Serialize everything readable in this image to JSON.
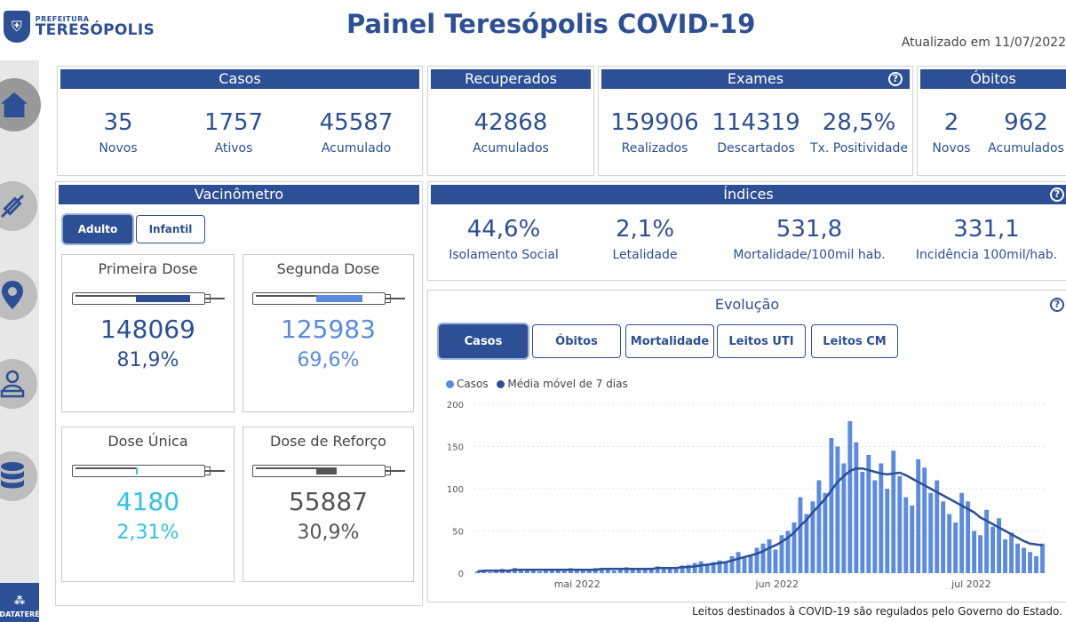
{
  "header": {
    "logo_top": "PREFEITURA",
    "logo_main": "TERESÓPOLIS",
    "title": "Painel Teresópolis COVID-19",
    "updated": "Atualizado em 11/07/2022"
  },
  "sidebar": {
    "brand": "DATATERÉ"
  },
  "casos": {
    "title": "Casos",
    "items": [
      {
        "value": "35",
        "label": "Novos"
      },
      {
        "value": "1757",
        "label": "Ativos"
      },
      {
        "value": "45587",
        "label": "Acumulado"
      }
    ]
  },
  "recuperados": {
    "title": "Recuperados",
    "value": "42868",
    "label": "Acumulados"
  },
  "exames": {
    "title": "Exames",
    "items": [
      {
        "value": "159906",
        "label": "Realizados"
      },
      {
        "value": "114319",
        "label": "Descartados"
      },
      {
        "value": "28,5%",
        "label": "Tx. Positividade"
      }
    ]
  },
  "obitos": {
    "title": "Óbitos",
    "items": [
      {
        "value": "2",
        "label": "Novos"
      },
      {
        "value": "962",
        "label": "Acumulados"
      }
    ]
  },
  "vacinometro": {
    "title": "Vacinômetro",
    "tabs": [
      "Adulto",
      "Infantil"
    ],
    "doses": [
      {
        "title": "Primeira Dose",
        "value": "148069",
        "pct": "81,9%",
        "color": "#2c4f95",
        "fill": 0.819
      },
      {
        "title": "Segunda Dose",
        "value": "125983",
        "pct": "69,6%",
        "color": "#5b8be0",
        "fill": 0.696
      },
      {
        "title": "Dose Única",
        "value": "4180",
        "pct": "2,31%",
        "color": "#2ec3e6",
        "fill": 0.0231
      },
      {
        "title": "Dose de Reforço",
        "value": "55887",
        "pct": "30,9%",
        "color": "#555555",
        "fill": 0.309
      }
    ]
  },
  "indices": {
    "title": "Índices",
    "items": [
      {
        "value": "44,6%",
        "label": "Isolamento Social"
      },
      {
        "value": "2,1%",
        "label": "Letalidade"
      },
      {
        "value": "531,8",
        "label": "Mortalidade/100mil hab."
      },
      {
        "value": "331,1",
        "label": "Incidência 100mil/hab."
      }
    ]
  },
  "evolucao": {
    "title": "Evolução",
    "buttons": [
      "Casos",
      "Óbitos",
      "Mortalidade",
      "Leitos UTI",
      "Leitos CM"
    ]
  },
  "footer": "Leitos destinados à COVID-19 são regulados pelo Governo do Estado.",
  "chart_data": {
    "type": "bar",
    "legend": [
      {
        "name": "Casos",
        "color": "#5b8be0"
      },
      {
        "name": "Média móvel de 7 dias",
        "color": "#2c4f95"
      }
    ],
    "x_ticks": [
      "mai 2022",
      "jun 2022",
      "jul 2022"
    ],
    "y_ticks": [
      0,
      50,
      100,
      150,
      200
    ],
    "ylim": [
      0,
      200
    ],
    "series": [
      {
        "name": "Casos",
        "type": "bar",
        "values": [
          2,
          3,
          1,
          4,
          5,
          3,
          6,
          4,
          5,
          3,
          2,
          4,
          5,
          3,
          4,
          6,
          5,
          3,
          4,
          6,
          5,
          4,
          3,
          5,
          7,
          6,
          5,
          4,
          6,
          8,
          7,
          6,
          5,
          9,
          10,
          12,
          14,
          11,
          13,
          15,
          14,
          20,
          25,
          18,
          22,
          30,
          35,
          40,
          28,
          45,
          50,
          60,
          90,
          70,
          85,
          110,
          95,
          160,
          150,
          130,
          180,
          155,
          120,
          140,
          110,
          130,
          100,
          145,
          115,
          90,
          80,
          135,
          125,
          95,
          110,
          85,
          70,
          60,
          95,
          85,
          50,
          45,
          75,
          55,
          65,
          40,
          48,
          35,
          30,
          25,
          20,
          35
        ]
      },
      {
        "name": "Média móvel de 7 dias",
        "type": "line",
        "values": [
          2,
          3,
          3,
          3,
          3,
          3,
          4,
          4,
          4,
          4,
          4,
          4,
          4,
          4,
          4,
          4,
          4,
          4,
          4,
          4,
          5,
          5,
          5,
          5,
          5,
          5,
          5,
          5,
          5,
          6,
          6,
          6,
          6,
          7,
          7,
          8,
          9,
          10,
          11,
          12,
          13,
          15,
          17,
          19,
          21,
          23,
          26,
          30,
          33,
          37,
          42,
          48,
          56,
          63,
          72,
          80,
          88,
          98,
          108,
          115,
          121,
          124,
          124,
          122,
          120,
          118,
          117,
          118,
          119,
          116,
          112,
          108,
          104,
          100,
          96,
          92,
          88,
          84,
          80,
          76,
          72,
          66,
          62,
          58,
          54,
          50,
          46,
          42,
          38,
          35,
          34,
          33
        ]
      }
    ]
  }
}
